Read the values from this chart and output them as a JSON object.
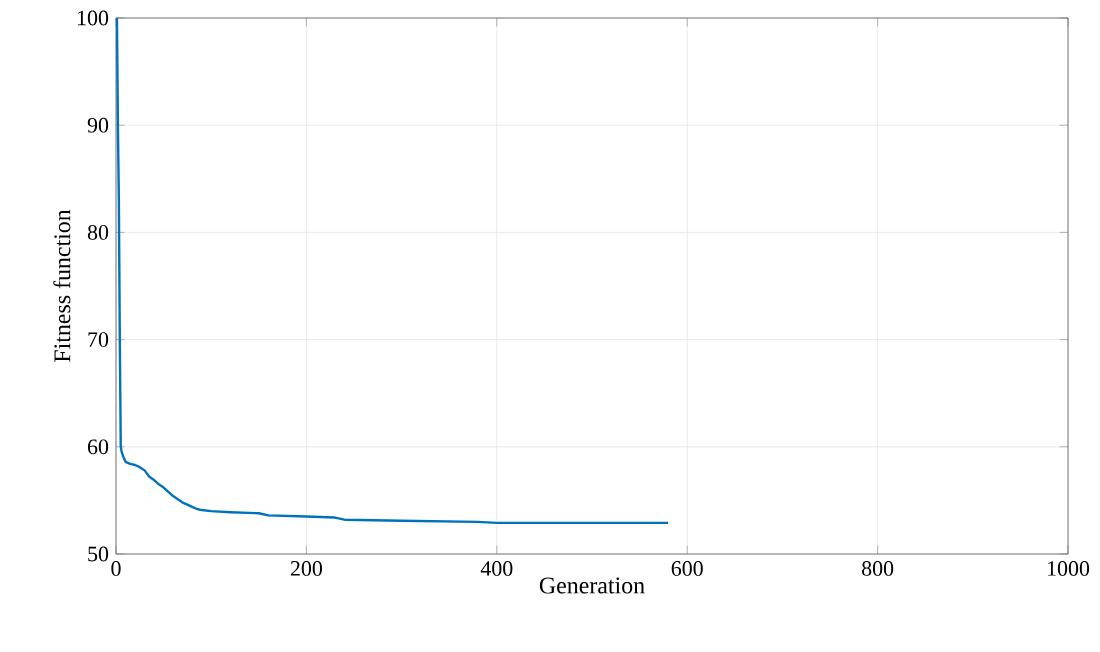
{
  "chart_data": {
    "type": "line",
    "xlabel": "Generation",
    "ylabel": "Fitness function",
    "x": [
      1,
      2,
      3,
      4,
      5,
      6,
      8,
      10,
      15,
      20,
      25,
      30,
      35,
      40,
      45,
      50,
      55,
      60,
      65,
      70,
      75,
      80,
      85,
      90,
      100,
      120,
      150,
      160,
      200,
      230,
      240,
      300,
      380,
      400,
      500,
      580
    ],
    "series": [
      {
        "color": "#0072bd",
        "values": [
          100,
          90,
          83,
          70,
          60,
          59.5,
          59,
          58.6,
          58.4,
          58.3,
          58.1,
          57.8,
          57.2,
          56.9,
          56.5,
          56.2,
          55.8,
          55.4,
          55.1,
          54.8,
          54.6,
          54.4,
          54.2,
          54.1,
          54.0,
          53.9,
          53.8,
          53.6,
          53.5,
          53.4,
          53.2,
          53.1,
          53.0,
          52.9,
          52.9,
          52.9
        ]
      }
    ],
    "xlim": [
      0,
      1000
    ],
    "ylim": [
      50,
      100
    ],
    "xticks": [
      0,
      200,
      400,
      600,
      800,
      1000
    ],
    "yticks": [
      50,
      60,
      70,
      80,
      90,
      100
    ],
    "grid": true,
    "line_style": "solid"
  }
}
